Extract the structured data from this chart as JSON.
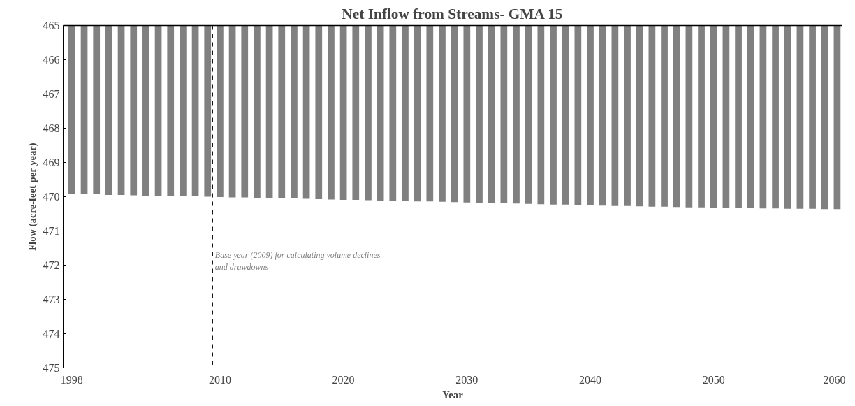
{
  "chart_data": {
    "type": "bar",
    "title": "Net Inflow from Streams- GMA 15",
    "xlabel": "Year",
    "ylabel": "Flow (acre-feet per year)",
    "x": [
      1998,
      1999,
      2000,
      2001,
      2002,
      2003,
      2004,
      2005,
      2006,
      2007,
      2008,
      2009,
      2010,
      2011,
      2012,
      2013,
      2014,
      2015,
      2016,
      2017,
      2018,
      2019,
      2020,
      2021,
      2022,
      2023,
      2024,
      2025,
      2026,
      2027,
      2028,
      2029,
      2030,
      2031,
      2032,
      2033,
      2034,
      2035,
      2036,
      2037,
      2038,
      2039,
      2040,
      2041,
      2042,
      2043,
      2044,
      2045,
      2046,
      2047,
      2048,
      2049,
      2050,
      2051,
      2052,
      2053,
      2054,
      2055,
      2056,
      2057,
      2058,
      2059,
      2060
    ],
    "series": [
      {
        "color": "#808080",
        "values": [
          469.92,
          469.92,
          469.93,
          469.95,
          469.95,
          469.96,
          469.97,
          469.98,
          469.98,
          469.99,
          469.99,
          470.0,
          470.01,
          470.02,
          470.02,
          470.03,
          470.04,
          470.05,
          470.05,
          470.06,
          470.07,
          470.08,
          470.09,
          470.09,
          470.1,
          470.11,
          470.12,
          470.13,
          470.14,
          470.14,
          470.15,
          470.16,
          470.17,
          470.18,
          470.18,
          470.19,
          470.2,
          470.21,
          470.22,
          470.23,
          470.23,
          470.24,
          470.25,
          470.26,
          470.27,
          470.27,
          470.28,
          470.29,
          470.29,
          470.3,
          470.31,
          470.31,
          470.32,
          470.32,
          470.33,
          470.33,
          470.34,
          470.34,
          470.35,
          470.35,
          470.35,
          470.36,
          470.36
        ]
      }
    ],
    "xlim": [
      1997.3,
      2060.4
    ],
    "xticks": [
      1998,
      2010,
      2020,
      2030,
      2040,
      2050,
      2060
    ],
    "ylim": [
      475,
      465
    ],
    "yticks": [
      465,
      466,
      467,
      468,
      469,
      470,
      471,
      472,
      473,
      474,
      475
    ],
    "ref_lines": [
      {
        "axis": "x",
        "value": 2009.4,
        "label": "Base year (2009) for calculating volume declines and drawdowns",
        "color": "#000000",
        "line_style": "dashed"
      }
    ],
    "grid": false
  }
}
